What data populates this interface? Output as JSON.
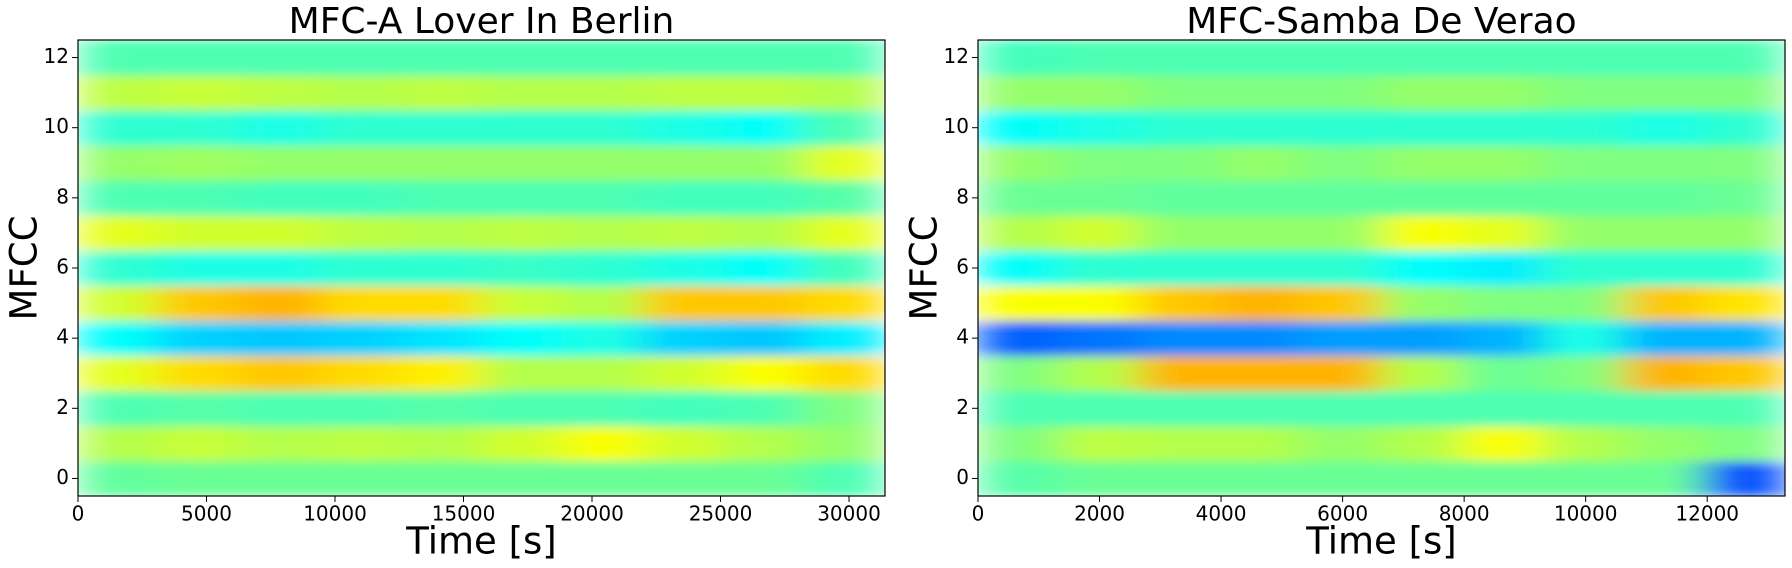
{
  "chart_data": [
    {
      "type": "heatmap",
      "title": "MFC-A Lover In Berlin",
      "xlabel": "Time [s]",
      "ylabel": "MFCC",
      "colormap": "jet",
      "xlim": [
        0,
        31400
      ],
      "xticks": [
        0,
        5000,
        10000,
        15000,
        20000,
        25000,
        30000
      ],
      "ylim": [
        -0.5,
        12.5
      ],
      "yticks": [
        0,
        2,
        4,
        6,
        8,
        10,
        12
      ],
      "zlim": [
        0,
        1
      ],
      "z": [
        [
          0.47,
          0.48,
          0.48,
          0.48,
          0.48,
          0.48,
          0.48,
          0.48,
          0.48,
          0.45
        ],
        [
          0.55,
          0.57,
          0.55,
          0.56,
          0.55,
          0.58,
          0.62,
          0.58,
          0.55,
          0.52
        ],
        [
          0.45,
          0.46,
          0.45,
          0.45,
          0.46,
          0.45,
          0.45,
          0.44,
          0.45,
          0.5
        ],
        [
          0.6,
          0.66,
          0.68,
          0.66,
          0.64,
          0.55,
          0.55,
          0.58,
          0.62,
          0.66
        ],
        [
          0.38,
          0.33,
          0.32,
          0.33,
          0.35,
          0.38,
          0.4,
          0.33,
          0.32,
          0.36
        ],
        [
          0.58,
          0.68,
          0.7,
          0.66,
          0.66,
          0.57,
          0.55,
          0.68,
          0.68,
          0.66
        ],
        [
          0.42,
          0.4,
          0.4,
          0.42,
          0.42,
          0.43,
          0.42,
          0.4,
          0.38,
          0.44
        ],
        [
          0.6,
          0.58,
          0.58,
          0.56,
          0.55,
          0.56,
          0.55,
          0.56,
          0.55,
          0.6
        ],
        [
          0.45,
          0.45,
          0.44,
          0.44,
          0.45,
          0.45,
          0.45,
          0.44,
          0.44,
          0.46
        ],
        [
          0.52,
          0.53,
          0.52,
          0.52,
          0.52,
          0.52,
          0.52,
          0.52,
          0.52,
          0.6
        ],
        [
          0.42,
          0.42,
          0.4,
          0.42,
          0.42,
          0.42,
          0.42,
          0.4,
          0.38,
          0.45
        ],
        [
          0.56,
          0.57,
          0.56,
          0.55,
          0.56,
          0.55,
          0.55,
          0.56,
          0.56,
          0.55
        ],
        [
          0.45,
          0.45,
          0.45,
          0.45,
          0.45,
          0.45,
          0.45,
          0.45,
          0.45,
          0.45
        ]
      ]
    },
    {
      "type": "heatmap",
      "title": "MFC-Samba De Verao",
      "xlabel": "Time [s]",
      "ylabel": "MFCC",
      "colormap": "jet",
      "xlim": [
        0,
        13280
      ],
      "xticks": [
        0,
        2000,
        4000,
        6000,
        8000,
        10000,
        12000
      ],
      "ylim": [
        -0.5,
        12.5
      ],
      "yticks": [
        0,
        2,
        4,
        6,
        8,
        10,
        12
      ],
      "zlim": [
        0,
        1
      ],
      "z": [
        [
          0.46,
          0.48,
          0.48,
          0.48,
          0.48,
          0.48,
          0.48,
          0.48,
          0.48,
          0.2
        ],
        [
          0.5,
          0.56,
          0.55,
          0.55,
          0.52,
          0.55,
          0.62,
          0.55,
          0.52,
          0.5
        ],
        [
          0.45,
          0.45,
          0.45,
          0.45,
          0.45,
          0.45,
          0.45,
          0.45,
          0.45,
          0.45
        ],
        [
          0.5,
          0.55,
          0.7,
          0.7,
          0.7,
          0.55,
          0.48,
          0.5,
          0.7,
          0.68
        ],
        [
          0.22,
          0.24,
          0.26,
          0.26,
          0.28,
          0.28,
          0.3,
          0.4,
          0.3,
          0.3
        ],
        [
          0.62,
          0.62,
          0.68,
          0.7,
          0.68,
          0.52,
          0.5,
          0.5,
          0.68,
          0.65
        ],
        [
          0.38,
          0.42,
          0.42,
          0.42,
          0.42,
          0.38,
          0.36,
          0.42,
          0.42,
          0.42
        ],
        [
          0.55,
          0.58,
          0.52,
          0.52,
          0.52,
          0.62,
          0.6,
          0.52,
          0.52,
          0.52
        ],
        [
          0.48,
          0.48,
          0.47,
          0.47,
          0.47,
          0.47,
          0.47,
          0.47,
          0.47,
          0.48
        ],
        [
          0.52,
          0.5,
          0.5,
          0.52,
          0.5,
          0.52,
          0.52,
          0.5,
          0.5,
          0.5
        ],
        [
          0.38,
          0.4,
          0.42,
          0.42,
          0.42,
          0.42,
          0.42,
          0.42,
          0.4,
          0.42
        ],
        [
          0.52,
          0.52,
          0.5,
          0.5,
          0.5,
          0.52,
          0.52,
          0.5,
          0.5,
          0.5
        ],
        [
          0.44,
          0.45,
          0.45,
          0.45,
          0.45,
          0.45,
          0.45,
          0.45,
          0.45,
          0.45
        ]
      ]
    }
  ]
}
